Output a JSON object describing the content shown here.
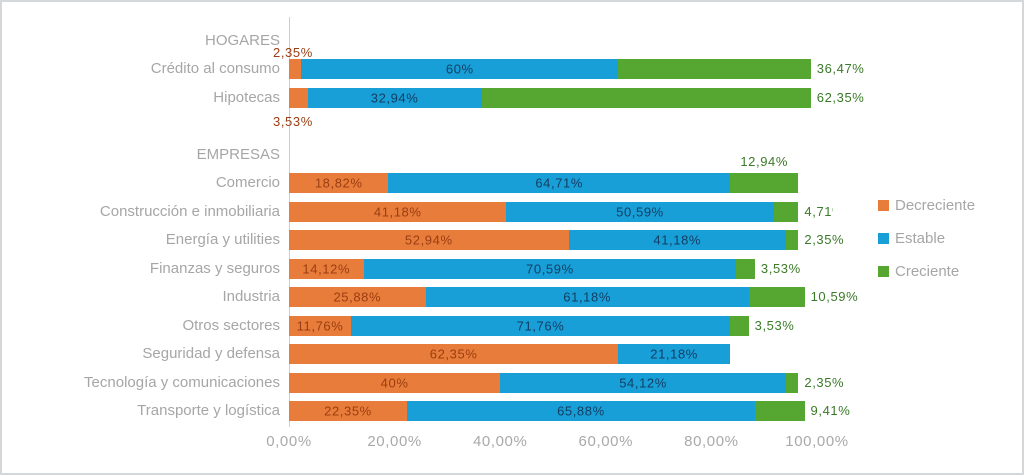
{
  "chart_data": {
    "type": "bar",
    "orientation": "horizontal",
    "stacked": true,
    "title": "",
    "xlabel": "",
    "ylabel": "",
    "x_axis": {
      "range": [
        0,
        100
      ],
      "values": [
        0,
        20,
        40,
        60,
        80,
        100
      ],
      "ticks": [
        "0,00%",
        "20,00%",
        "40,00%",
        "60,00%",
        "80,00%",
        "100,00%"
      ]
    },
    "legend": {
      "position": "right"
    },
    "series": [
      {
        "key": "decreciente",
        "name": "Decreciente",
        "color": "#e87d3b",
        "label_color": "#9a3d12"
      },
      {
        "key": "estable",
        "name": "Estable",
        "color": "#189fd8",
        "label_color": "#123f63"
      },
      {
        "key": "creciente",
        "name": "Creciente",
        "color": "#56a632",
        "label_color": "#3a7a28"
      }
    ],
    "rows": [
      {
        "type": "group",
        "label": "HOGARES"
      },
      {
        "type": "data",
        "label": "Crédito al consumo",
        "values": [
          2.35,
          60,
          36.47
        ],
        "value_labels": [
          "2,35%",
          "60%",
          "36,47%"
        ],
        "label_placements": [
          "above",
          "inside",
          "outside"
        ]
      },
      {
        "type": "data",
        "label": "Hipotecas",
        "values": [
          3.53,
          32.94,
          62.35
        ],
        "value_labels": [
          "3,53%",
          "32,94%",
          "62,35%"
        ],
        "label_placements": [
          "below",
          "inside",
          "outside"
        ]
      },
      {
        "type": "spacer",
        "label": ""
      },
      {
        "type": "group",
        "label": "EMPRESAS"
      },
      {
        "type": "data",
        "label": "Comercio",
        "values": [
          18.82,
          64.71,
          12.94
        ],
        "value_labels": [
          "18,82%",
          "64,71%",
          "12,94%"
        ],
        "label_placements": [
          "inside",
          "inside",
          "above"
        ]
      },
      {
        "type": "data",
        "label": "Construcción e inmobiliaria",
        "values": [
          41.18,
          50.59,
          4.71
        ],
        "value_labels": [
          "41,18%",
          "50,59%",
          "4,71%"
        ],
        "label_placements": [
          "inside",
          "inside",
          "outside-clipped"
        ]
      },
      {
        "type": "data",
        "label": "Energía y utilities",
        "values": [
          52.94,
          41.18,
          2.35
        ],
        "value_labels": [
          "52,94%",
          "41,18%",
          "2,35%"
        ],
        "label_placements": [
          "inside",
          "inside",
          "outside"
        ]
      },
      {
        "type": "data",
        "label": "Finanzas y seguros",
        "values": [
          14.12,
          70.59,
          3.53
        ],
        "value_labels": [
          "14,12%",
          "70,59%",
          "3,53%"
        ],
        "label_placements": [
          "inside",
          "inside",
          "outside"
        ]
      },
      {
        "type": "data",
        "label": "Industria",
        "values": [
          25.88,
          61.18,
          10.59
        ],
        "value_labels": [
          "25,88%",
          "61,18%",
          "10,59%"
        ],
        "label_placements": [
          "inside",
          "inside",
          "outside"
        ]
      },
      {
        "type": "data",
        "label": "Otros sectores",
        "values": [
          11.76,
          71.76,
          3.53
        ],
        "value_labels": [
          "11,76%",
          "71,76%",
          "3,53%"
        ],
        "label_placements": [
          "inside",
          "inside",
          "outside"
        ]
      },
      {
        "type": "data",
        "label": "Seguridad y defensa",
        "values": [
          62.35,
          21.18,
          0
        ],
        "value_labels": [
          "62,35%",
          "21,18%",
          ""
        ],
        "label_placements": [
          "inside",
          "inside",
          "none"
        ]
      },
      {
        "type": "data",
        "label": "Tecnología y comunicaciones",
        "values": [
          40,
          54.12,
          2.35
        ],
        "value_labels": [
          "40%",
          "54,12%",
          "2,35%"
        ],
        "label_placements": [
          "inside",
          "inside",
          "outside"
        ]
      },
      {
        "type": "data",
        "label": "Transporte y logística",
        "values": [
          22.35,
          65.88,
          9.41
        ],
        "value_labels": [
          "22,35%",
          "65,88%",
          "9,41%"
        ],
        "label_placements": [
          "inside",
          "inside",
          "outside"
        ]
      }
    ]
  }
}
